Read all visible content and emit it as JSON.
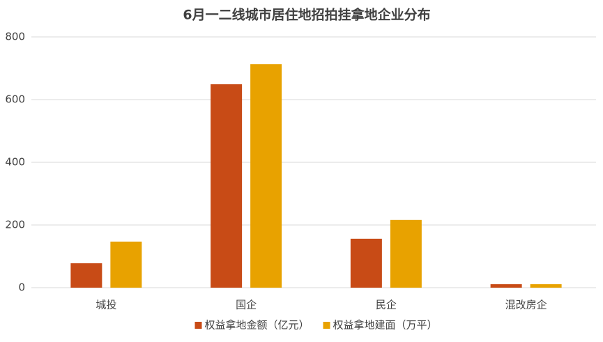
{
  "chart_data": {
    "type": "bar",
    "title": "6月一二线城市居住地招拍挂拿地企业分布",
    "categories": [
      "城投",
      "国企",
      "民企",
      "混改房企"
    ],
    "series": [
      {
        "name": "权益拿地金额（亿元）",
        "color": "#c84b16",
        "values": [
          78,
          649,
          156,
          11
        ]
      },
      {
        "name": "权益拿地建面（万平）",
        "color": "#e8a200",
        "values": [
          147,
          713,
          216,
          11
        ]
      }
    ],
    "ylim": [
      0,
      800
    ],
    "yticks": [
      0,
      200,
      400,
      600,
      800
    ],
    "grid": true,
    "legend": "bottom"
  }
}
